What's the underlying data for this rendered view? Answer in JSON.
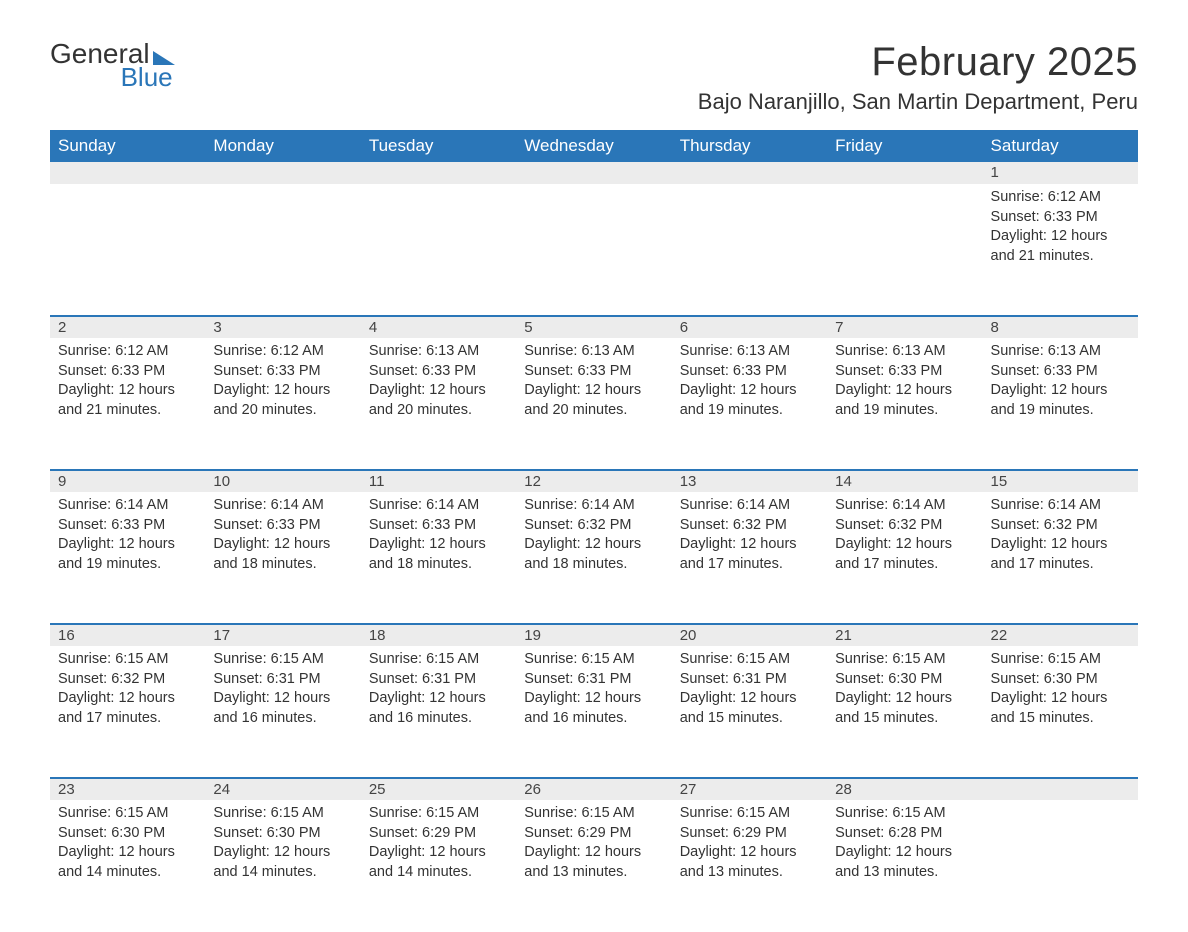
{
  "logo": {
    "word1": "General",
    "word2": "Blue"
  },
  "title": "February 2025",
  "location": "Bajo Naranjillo, San Martin Department, Peru",
  "colors": {
    "header_bg": "#2a76b8",
    "header_text": "#ffffff",
    "daynum_bg": "#ececec",
    "divider": "#2a76b8",
    "body_text": "#333333",
    "page_bg": "#ffffff"
  },
  "layout": {
    "columns": 7,
    "rows": 5,
    "first_day_column_index": 6
  },
  "day_headers": [
    "Sunday",
    "Monday",
    "Tuesday",
    "Wednesday",
    "Thursday",
    "Friday",
    "Saturday"
  ],
  "labels": {
    "sunrise": "Sunrise:",
    "sunset": "Sunset:",
    "daylight": "Daylight:"
  },
  "fonts": {
    "title_pt": 40,
    "location_pt": 22,
    "day_header_pt": 17,
    "daynum_pt": 15,
    "cell_pt": 14.5
  },
  "days": [
    {
      "n": 1,
      "sunrise": "6:12 AM",
      "sunset": "6:33 PM",
      "daylight": "12 hours and 21 minutes."
    },
    {
      "n": 2,
      "sunrise": "6:12 AM",
      "sunset": "6:33 PM",
      "daylight": "12 hours and 21 minutes."
    },
    {
      "n": 3,
      "sunrise": "6:12 AM",
      "sunset": "6:33 PM",
      "daylight": "12 hours and 20 minutes."
    },
    {
      "n": 4,
      "sunrise": "6:13 AM",
      "sunset": "6:33 PM",
      "daylight": "12 hours and 20 minutes."
    },
    {
      "n": 5,
      "sunrise": "6:13 AM",
      "sunset": "6:33 PM",
      "daylight": "12 hours and 20 minutes."
    },
    {
      "n": 6,
      "sunrise": "6:13 AM",
      "sunset": "6:33 PM",
      "daylight": "12 hours and 19 minutes."
    },
    {
      "n": 7,
      "sunrise": "6:13 AM",
      "sunset": "6:33 PM",
      "daylight": "12 hours and 19 minutes."
    },
    {
      "n": 8,
      "sunrise": "6:13 AM",
      "sunset": "6:33 PM",
      "daylight": "12 hours and 19 minutes."
    },
    {
      "n": 9,
      "sunrise": "6:14 AM",
      "sunset": "6:33 PM",
      "daylight": "12 hours and 19 minutes."
    },
    {
      "n": 10,
      "sunrise": "6:14 AM",
      "sunset": "6:33 PM",
      "daylight": "12 hours and 18 minutes."
    },
    {
      "n": 11,
      "sunrise": "6:14 AM",
      "sunset": "6:33 PM",
      "daylight": "12 hours and 18 minutes."
    },
    {
      "n": 12,
      "sunrise": "6:14 AM",
      "sunset": "6:32 PM",
      "daylight": "12 hours and 18 minutes."
    },
    {
      "n": 13,
      "sunrise": "6:14 AM",
      "sunset": "6:32 PM",
      "daylight": "12 hours and 17 minutes."
    },
    {
      "n": 14,
      "sunrise": "6:14 AM",
      "sunset": "6:32 PM",
      "daylight": "12 hours and 17 minutes."
    },
    {
      "n": 15,
      "sunrise": "6:14 AM",
      "sunset": "6:32 PM",
      "daylight": "12 hours and 17 minutes."
    },
    {
      "n": 16,
      "sunrise": "6:15 AM",
      "sunset": "6:32 PM",
      "daylight": "12 hours and 17 minutes."
    },
    {
      "n": 17,
      "sunrise": "6:15 AM",
      "sunset": "6:31 PM",
      "daylight": "12 hours and 16 minutes."
    },
    {
      "n": 18,
      "sunrise": "6:15 AM",
      "sunset": "6:31 PM",
      "daylight": "12 hours and 16 minutes."
    },
    {
      "n": 19,
      "sunrise": "6:15 AM",
      "sunset": "6:31 PM",
      "daylight": "12 hours and 16 minutes."
    },
    {
      "n": 20,
      "sunrise": "6:15 AM",
      "sunset": "6:31 PM",
      "daylight": "12 hours and 15 minutes."
    },
    {
      "n": 21,
      "sunrise": "6:15 AM",
      "sunset": "6:30 PM",
      "daylight": "12 hours and 15 minutes."
    },
    {
      "n": 22,
      "sunrise": "6:15 AM",
      "sunset": "6:30 PM",
      "daylight": "12 hours and 15 minutes."
    },
    {
      "n": 23,
      "sunrise": "6:15 AM",
      "sunset": "6:30 PM",
      "daylight": "12 hours and 14 minutes."
    },
    {
      "n": 24,
      "sunrise": "6:15 AM",
      "sunset": "6:30 PM",
      "daylight": "12 hours and 14 minutes."
    },
    {
      "n": 25,
      "sunrise": "6:15 AM",
      "sunset": "6:29 PM",
      "daylight": "12 hours and 14 minutes."
    },
    {
      "n": 26,
      "sunrise": "6:15 AM",
      "sunset": "6:29 PM",
      "daylight": "12 hours and 13 minutes."
    },
    {
      "n": 27,
      "sunrise": "6:15 AM",
      "sunset": "6:29 PM",
      "daylight": "12 hours and 13 minutes."
    },
    {
      "n": 28,
      "sunrise": "6:15 AM",
      "sunset": "6:28 PM",
      "daylight": "12 hours and 13 minutes."
    }
  ]
}
